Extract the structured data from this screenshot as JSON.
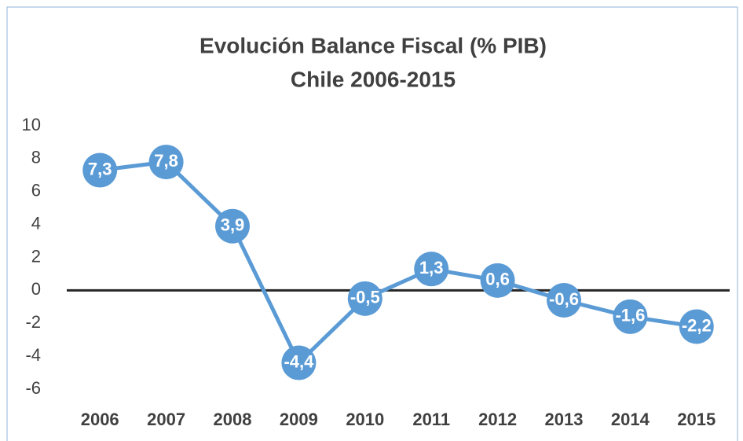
{
  "chart_data": {
    "type": "line",
    "title": "Evolución Balance Fiscal (% PIB)",
    "subtitle": "Chile 2006-2015",
    "categories": [
      "2006",
      "2007",
      "2008",
      "2009",
      "2010",
      "2011",
      "2012",
      "2013",
      "2014",
      "2015"
    ],
    "series": [
      {
        "color": "#5b9bd5",
        "values": [
          7.3,
          7.8,
          3.9,
          -4.4,
          -0.5,
          1.3,
          0.6,
          -0.6,
          -1.6,
          -2.2
        ],
        "value_labels": [
          "7,3",
          "7,8",
          "3,9",
          "-4,4",
          "-0,5",
          "1,3",
          "0,6",
          "-0,6",
          "-1,6",
          "-2,2"
        ]
      }
    ],
    "ylim": [
      -6,
      10
    ],
    "yticks": [
      10,
      8,
      6,
      4,
      2,
      0,
      -2,
      -4,
      -6
    ],
    "grid": false
  }
}
